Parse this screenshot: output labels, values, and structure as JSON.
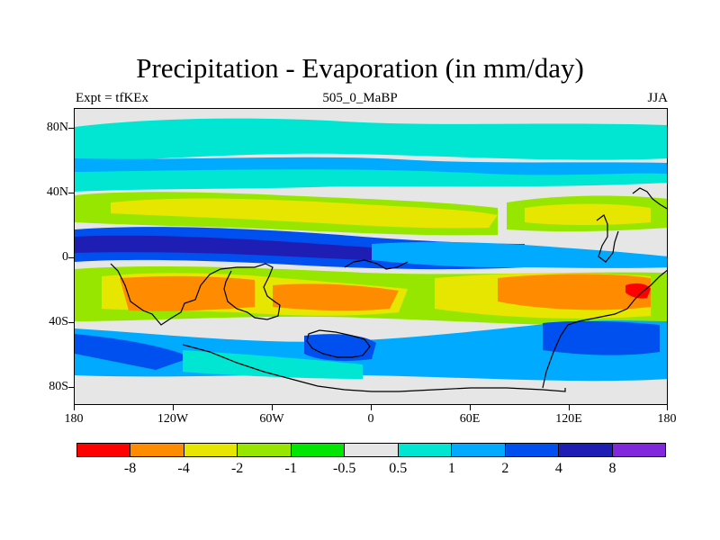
{
  "title": "Precipitation - Evaporation (in mm/day)",
  "subtitle_left": "Expt = tfKEx",
  "subtitle_center": "505_0_MaBP",
  "subtitle_right": "JJA",
  "map": {
    "projection": "cylindrical-equidistant",
    "lon_range": [
      -180,
      180
    ],
    "lat_range": [
      -90,
      90
    ],
    "lon_tick_labels": [
      "180",
      "120W",
      "60W",
      "0",
      "60E",
      "120E",
      "180"
    ],
    "lat_tick_labels": [
      "80N",
      "40N",
      "0",
      "40S",
      "80S"
    ],
    "background_color": "#e6e6e6",
    "coastline_color": "#000000"
  },
  "colorbar": {
    "colors": [
      "#ff0000",
      "#ff8c00",
      "#e6e600",
      "#96e600",
      "#00e600",
      "#e6e6e6",
      "#00e6d2",
      "#00aaff",
      "#0050f0",
      "#1e1eb4",
      "#8228dc"
    ],
    "labels": [
      "-8",
      "-4",
      "-2",
      "-1",
      "-0.5",
      "0.5",
      "1",
      "2",
      "4",
      "8"
    ]
  }
}
